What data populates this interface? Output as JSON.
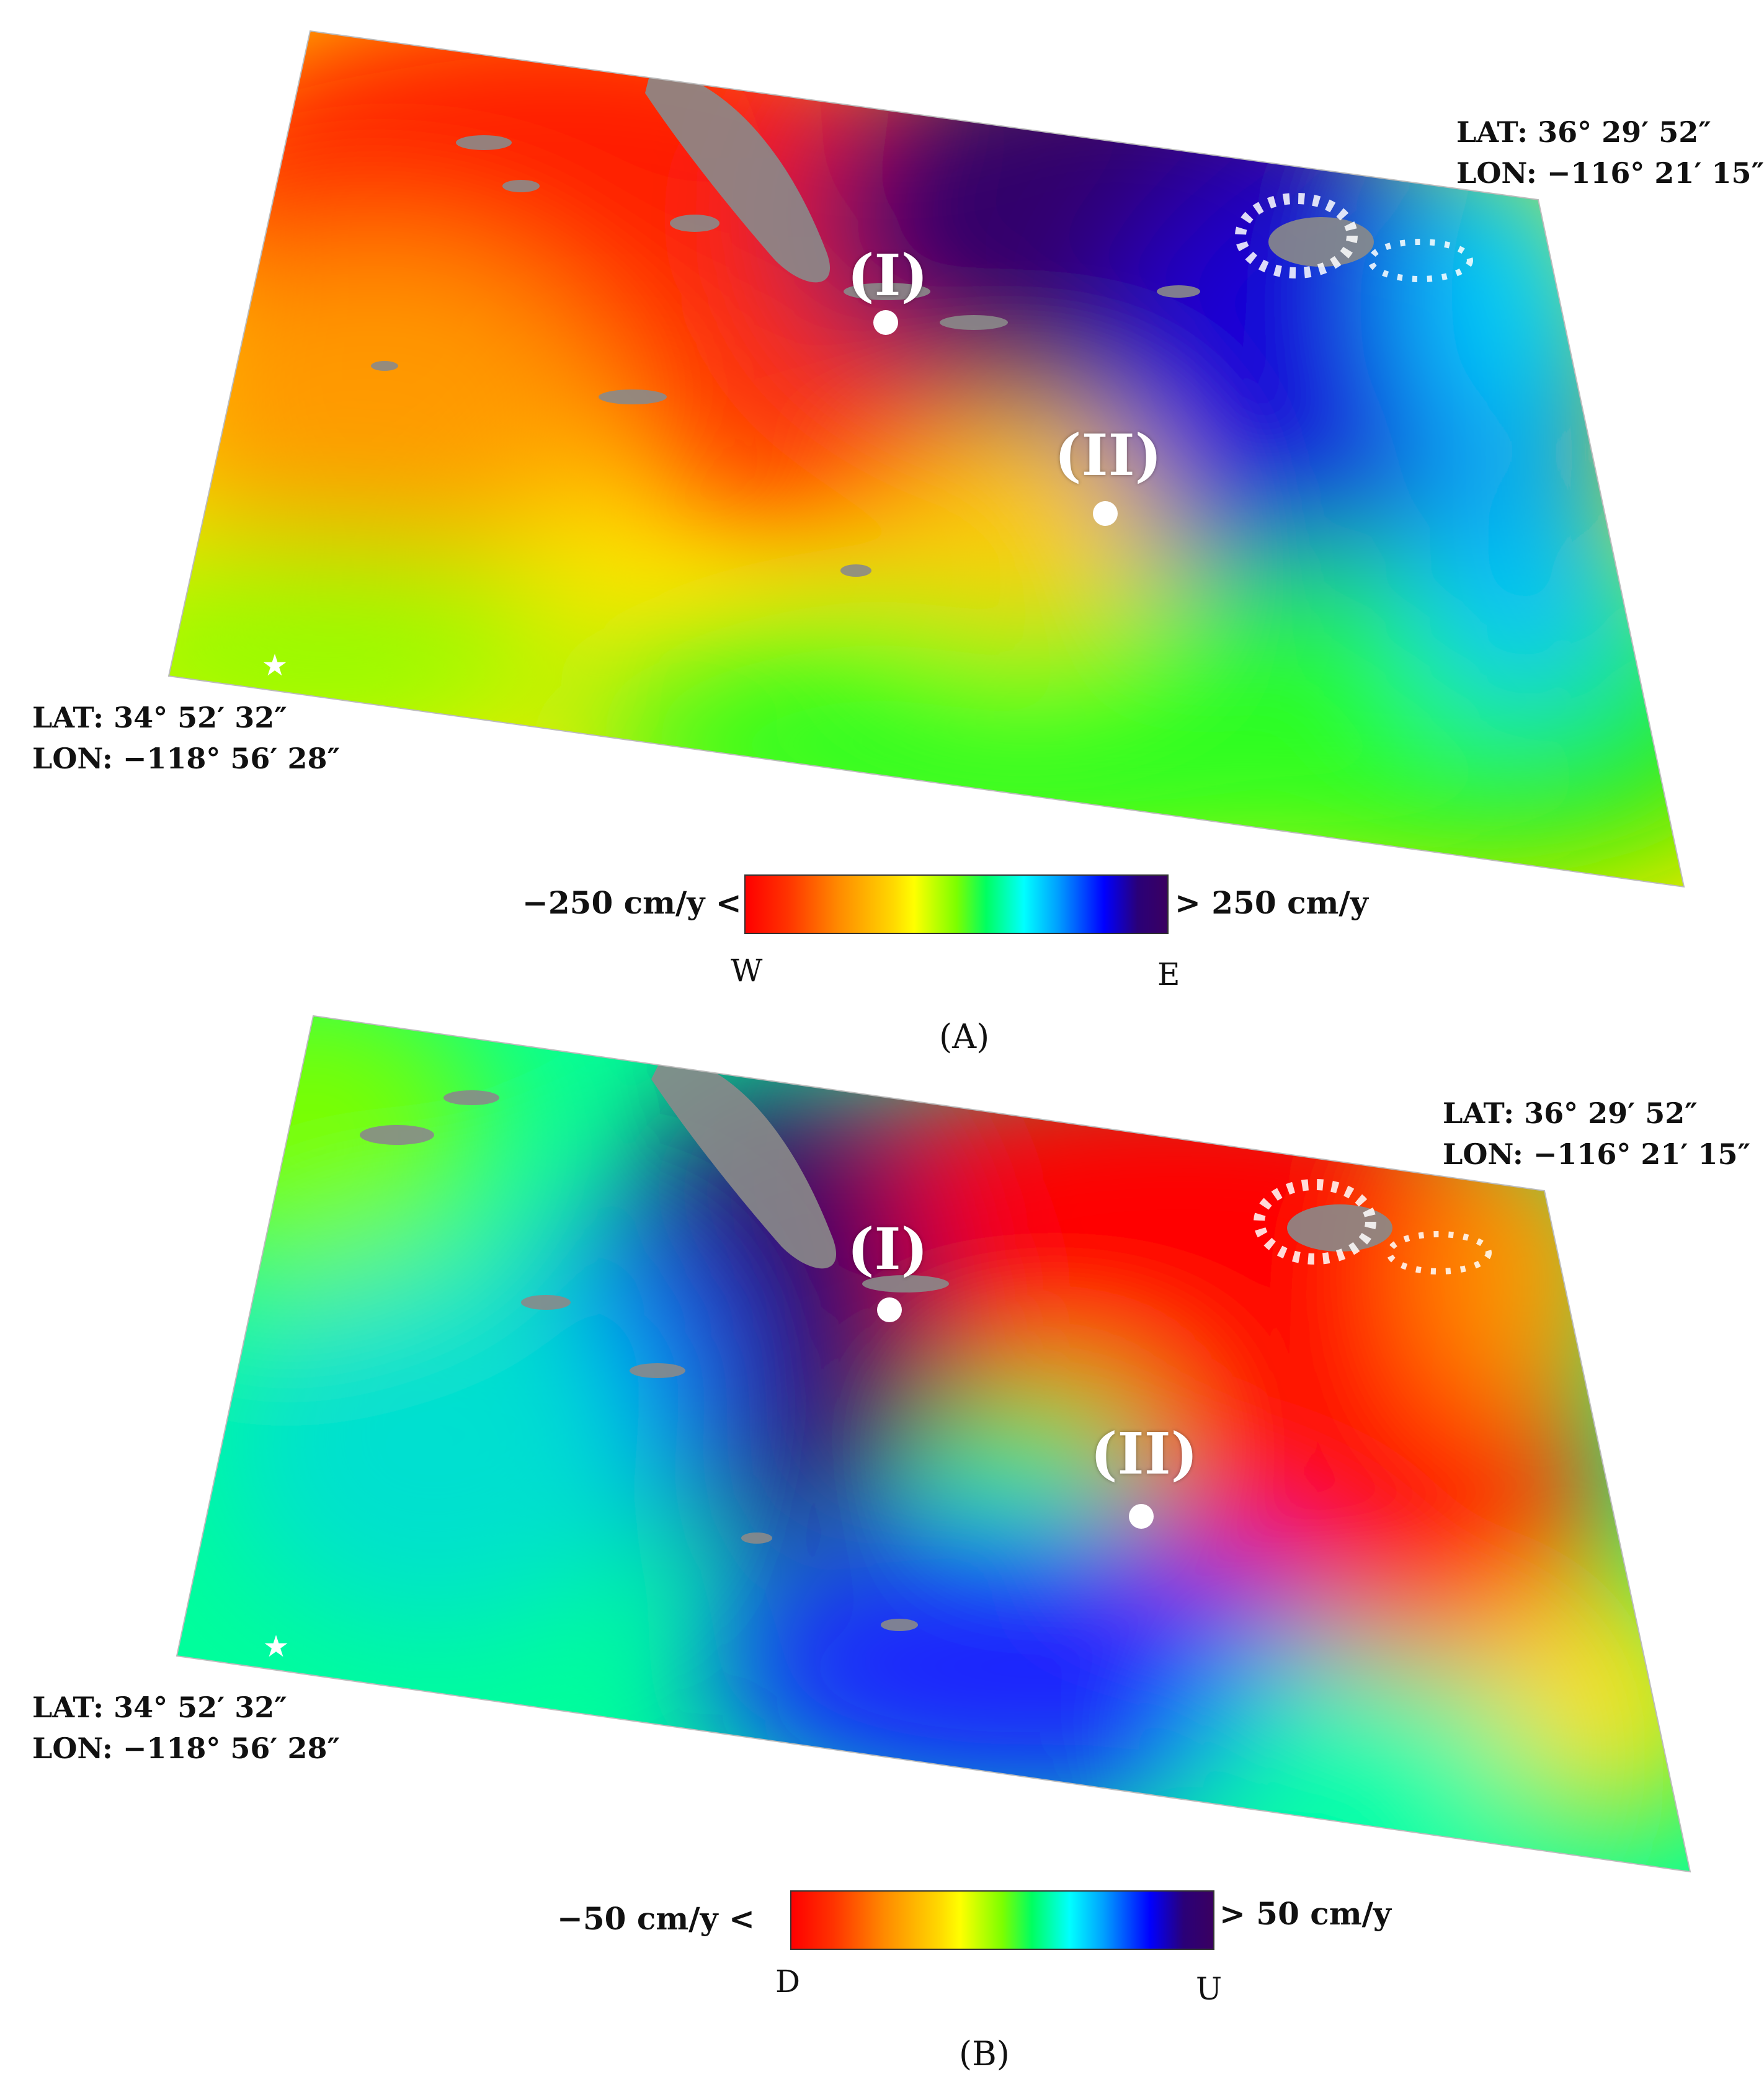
{
  "panels": [
    {
      "id": "A",
      "caption": "(A)",
      "corner_ne": {
        "lat": "LAT: 36° 29′ 52″",
        "lon": "LON: −116° 21′ 15″"
      },
      "corner_sw": {
        "lat": "LAT: 34° 52′ 32″",
        "lon": "LON: −118° 56′ 28″"
      },
      "sites": [
        {
          "label": "(I)"
        },
        {
          "label": "(II)"
        }
      ],
      "colorbar": {
        "min_label": "−250 cm/y <",
        "max_label": "> 250 cm/y",
        "min_value": -250,
        "max_value": 250,
        "unit": "cm/y",
        "left_end": "W",
        "right_end": "E"
      }
    },
    {
      "id": "B",
      "caption": "(B)",
      "corner_ne": {
        "lat": "LAT: 36° 29′ 52″",
        "lon": "LON: −116° 21′ 15″"
      },
      "corner_sw": {
        "lat": "LAT: 34° 52′ 32″",
        "lon": "LON: −118° 56′ 28″"
      },
      "sites": [
        {
          "label": "(I)"
        },
        {
          "label": "(II)"
        }
      ],
      "colorbar": {
        "min_label": "−50 cm/y <",
        "max_label": "> 50 cm/y",
        "min_value": -50,
        "max_value": 50,
        "unit": "cm/y",
        "left_end": "D",
        "right_end": "U"
      }
    }
  ],
  "colors": {
    "red": "#ff0000",
    "orange": "#ff8a00",
    "yellow": "#ffff00",
    "green": "#22ff00",
    "cyan": "#00e8ff",
    "blue": "#0020ff",
    "dark_purple": "#3a0060",
    "no_data_gray": "#8a8a8a"
  },
  "icons": {
    "epicenter": "star-icon"
  }
}
